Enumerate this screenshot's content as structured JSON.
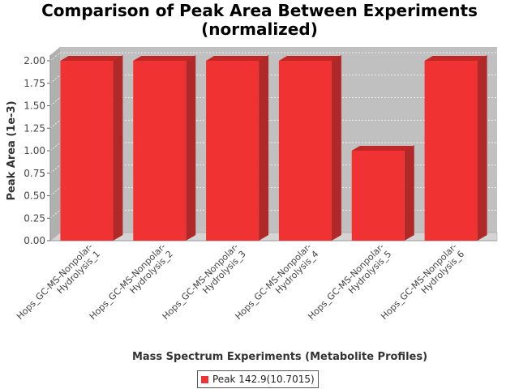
{
  "chart_data": {
    "type": "bar",
    "title": "Comparison of Peak Area Between Experiments (normalized)",
    "title_lines": [
      "Comparison of Peak Area Between Experiments",
      "(normalized)"
    ],
    "xlabel": "Mass Spectrum Experiments (Metabolite Profiles)",
    "ylabel": "Peak Area (1e-3)",
    "ylim": [
      0,
      2.0
    ],
    "y_ticks": [
      "0.00",
      "0.25",
      "0.50",
      "0.75",
      "1.00",
      "1.25",
      "1.50",
      "1.75",
      "2.00"
    ],
    "categories": [
      [
        "Hops_GC-MS-Nonpolar-",
        "Hydrolysis_1"
      ],
      [
        "Hops_GC-MS-Nonpolar-",
        "Hydrolysis_2"
      ],
      [
        "Hops_GC-MS-Nonpolar-",
        "Hydrolysis_3"
      ],
      [
        "Hops_GC-MS-Nonpolar-",
        "Hydrolysis_4"
      ],
      [
        "Hops_GC-MS-Nonpolar-",
        "Hydrolysis_5"
      ],
      [
        "Hops_GC-MS-Nonpolar-",
        "Hydrolysis_6"
      ]
    ],
    "series": [
      {
        "name": "Peak 142.9(10.7015)",
        "values": [
          2.0,
          2.0,
          2.0,
          2.0,
          1.0,
          2.0
        ]
      }
    ],
    "grid": true,
    "legend_position": "bottom",
    "colors": {
      "bar": "#f03232",
      "bar_top": "#c02828",
      "bar_side": "#b02828",
      "plot_bg": "#c0c0c0",
      "plot_floor": "#d4d4d4"
    }
  }
}
